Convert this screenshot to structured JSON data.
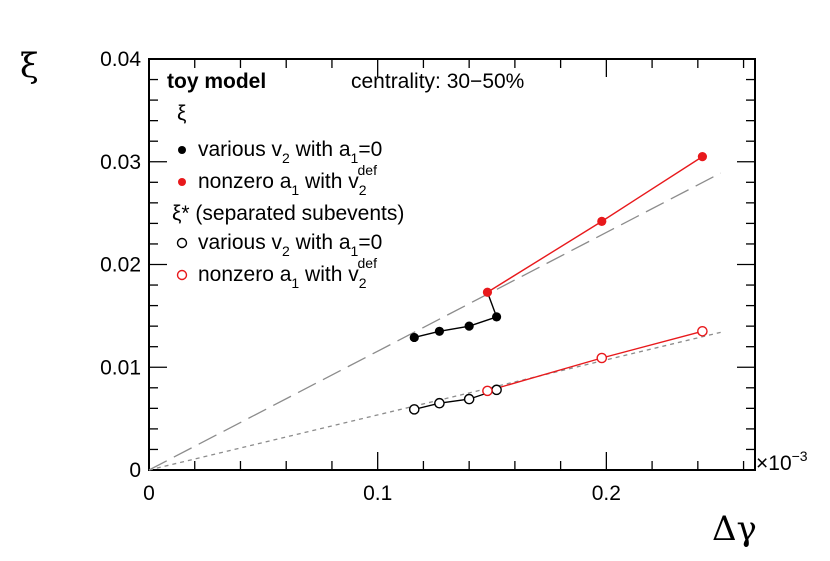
{
  "chart_data": {
    "type": "line",
    "title": "",
    "xlabel": "Δγ",
    "ylabel": "ξ",
    "x_multiplier": "×10",
    "x_multiplier_exp": "−3",
    "xlim": [
      0,
      0.000265
    ],
    "ylim": [
      0,
      0.04
    ],
    "x_ticks": [
      {
        "value": 0,
        "label": "0"
      },
      {
        "value": 0.0001,
        "label": "0.1"
      },
      {
        "value": 0.0002,
        "label": "0.2"
      }
    ],
    "y_ticks": [
      {
        "value": 0,
        "label": "0"
      },
      {
        "value": 0.01,
        "label": "0.01"
      },
      {
        "value": 0.02,
        "label": "0.02"
      },
      {
        "value": 0.03,
        "label": "0.03"
      },
      {
        "value": 0.04,
        "label": "0.04"
      }
    ],
    "legend": {
      "header_bold": "toy model",
      "header_text": "centrality: 30−50%",
      "group1": "ξ",
      "group2": "ξ* (separated subevents)",
      "entry_various": {
        "main": "various v",
        "sub1": "2",
        "mid": " with a",
        "sub2": "1",
        "tail": "=0"
      },
      "entry_nonzero": {
        "main": "nonzero a",
        "sub1": "1",
        "mid": " with v",
        "sub2": "2",
        "sup2": "def"
      }
    },
    "series": [
      {
        "name": "xi various v2 with a1=0",
        "color": "#000000",
        "marker": "filled",
        "x": [
          0.000116,
          0.000127,
          0.00014,
          0.000152
        ],
        "y": [
          0.0129,
          0.0135,
          0.014,
          0.0149
        ]
      },
      {
        "name": "xi nonzero a1 with v2def",
        "color": "#e8191c",
        "marker": "filled",
        "x": [
          0.000148,
          0.000198,
          0.000242
        ],
        "y": [
          0.0173,
          0.0242,
          0.0305
        ]
      },
      {
        "name": "xi* various v2 with a1=0",
        "color": "#000000",
        "marker": "open",
        "x": [
          0.000116,
          0.000127,
          0.00014,
          0.000152
        ],
        "y": [
          0.0059,
          0.0065,
          0.0069,
          0.0078
        ]
      },
      {
        "name": "xi* nonzero a1 with v2def",
        "color": "#e8191c",
        "marker": "open",
        "x": [
          0.000148,
          0.000198,
          0.000242
        ],
        "y": [
          0.0077,
          0.0109,
          0.0135
        ]
      }
    ],
    "connector": {
      "x": [
        0.000152,
        0.000148
      ],
      "y": [
        0.0149,
        0.0173
      ]
    },
    "fits": [
      {
        "name": "long-dashed reference line",
        "style": "long-dash",
        "color": "#8c8c8c",
        "x": [
          0,
          0.00025
        ],
        "y": [
          0,
          0.0289
        ]
      },
      {
        "name": "short-dashed reference line",
        "style": "short-dash",
        "color": "#8c8c8c",
        "x": [
          0,
          0.00025
        ],
        "y": [
          0,
          0.0134
        ]
      }
    ]
  }
}
